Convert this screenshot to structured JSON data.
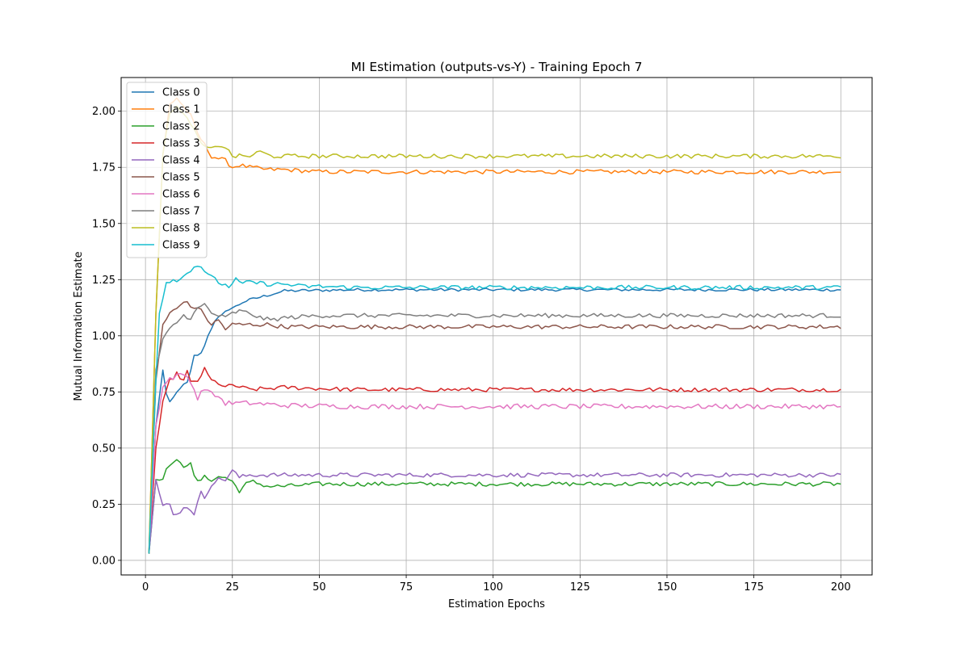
{
  "chart_data": {
    "type": "line",
    "title": "MI Estimation (outputs-vs-Y) - Training Epoch 7",
    "xlabel": "Estimation Epochs",
    "ylabel": "Mutual Information Estimate",
    "xlim": [
      -7,
      209
    ],
    "ylim": [
      -0.065,
      2.15
    ],
    "xticks": [
      0,
      25,
      50,
      75,
      100,
      125,
      150,
      175,
      200
    ],
    "yticks": [
      0.0,
      0.25,
      0.5,
      0.75,
      1.0,
      1.25,
      1.5,
      1.75,
      2.0
    ],
    "ytick_labels": [
      "0.00",
      "0.25",
      "0.50",
      "0.75",
      "1.00",
      "1.25",
      "1.50",
      "1.75",
      "2.00"
    ],
    "grid": true,
    "legend_position": "top-left",
    "x_start": 1,
    "x_end": 200,
    "series": [
      {
        "name": "Class 0",
        "color": "#1f77b4",
        "anchors": [
          [
            1,
            0.03
          ],
          [
            3,
            0.6
          ],
          [
            5,
            0.85
          ],
          [
            6,
            0.74
          ],
          [
            7,
            0.7
          ],
          [
            10,
            0.77
          ],
          [
            12,
            0.79
          ],
          [
            13,
            0.84
          ],
          [
            14,
            0.91
          ],
          [
            16,
            0.92
          ],
          [
            18,
            1.0
          ],
          [
            20,
            1.07
          ],
          [
            22,
            1.09
          ],
          [
            24,
            1.12
          ],
          [
            26,
            1.13
          ],
          [
            28,
            1.15
          ],
          [
            30,
            1.16
          ],
          [
            35,
            1.18
          ],
          [
            40,
            1.2
          ],
          [
            60,
            1.205
          ],
          [
            200,
            1.205
          ]
        ],
        "noise": 0.004
      },
      {
        "name": "Class 1",
        "color": "#ff7f0e",
        "anchors": [
          [
            1,
            0.03
          ],
          [
            3,
            1.1
          ],
          [
            5,
            1.8
          ],
          [
            7,
            2.03
          ],
          [
            9,
            2.06
          ],
          [
            11,
            2.02
          ],
          [
            13,
            1.98
          ],
          [
            15,
            1.9
          ],
          [
            17,
            1.85
          ],
          [
            19,
            1.8
          ],
          [
            21,
            1.79
          ],
          [
            23,
            1.78
          ],
          [
            25,
            1.75
          ],
          [
            27,
            1.76
          ],
          [
            30,
            1.75
          ],
          [
            35,
            1.74
          ],
          [
            40,
            1.74
          ],
          [
            50,
            1.73
          ],
          [
            200,
            1.73
          ]
        ],
        "noise": 0.006
      },
      {
        "name": "Class 2",
        "color": "#2ca02c",
        "anchors": [
          [
            1,
            0.03
          ],
          [
            3,
            0.36
          ],
          [
            5,
            0.37
          ],
          [
            7,
            0.43
          ],
          [
            9,
            0.44
          ],
          [
            11,
            0.42
          ],
          [
            13,
            0.44
          ],
          [
            14,
            0.37
          ],
          [
            15,
            0.35
          ],
          [
            17,
            0.37
          ],
          [
            19,
            0.36
          ],
          [
            21,
            0.37
          ],
          [
            23,
            0.37
          ],
          [
            25,
            0.35
          ],
          [
            27,
            0.31
          ],
          [
            29,
            0.34
          ],
          [
            31,
            0.35
          ],
          [
            33,
            0.34
          ],
          [
            35,
            0.33
          ],
          [
            40,
            0.33
          ],
          [
            50,
            0.34
          ],
          [
            200,
            0.34
          ]
        ],
        "noise": 0.006
      },
      {
        "name": "Class 3",
        "color": "#d62728",
        "anchors": [
          [
            1,
            0.03
          ],
          [
            3,
            0.5
          ],
          [
            5,
            0.7
          ],
          [
            7,
            0.8
          ],
          [
            9,
            0.83
          ],
          [
            11,
            0.8
          ],
          [
            12,
            0.84
          ],
          [
            13,
            0.79
          ],
          [
            15,
            0.8
          ],
          [
            17,
            0.85
          ],
          [
            19,
            0.8
          ],
          [
            21,
            0.79
          ],
          [
            23,
            0.77
          ],
          [
            25,
            0.78
          ],
          [
            30,
            0.76
          ],
          [
            40,
            0.77
          ],
          [
            60,
            0.76
          ],
          [
            200,
            0.76
          ]
        ],
        "noise": 0.006
      },
      {
        "name": "Class 4",
        "color": "#9467bd",
        "anchors": [
          [
            1,
            0.03
          ],
          [
            3,
            0.36
          ],
          [
            5,
            0.24
          ],
          [
            7,
            0.25
          ],
          [
            8,
            0.2
          ],
          [
            10,
            0.22
          ],
          [
            12,
            0.24
          ],
          [
            14,
            0.21
          ],
          [
            16,
            0.3
          ],
          [
            17,
            0.28
          ],
          [
            19,
            0.34
          ],
          [
            21,
            0.36
          ],
          [
            23,
            0.36
          ],
          [
            25,
            0.4
          ],
          [
            27,
            0.37
          ],
          [
            30,
            0.38
          ],
          [
            40,
            0.38
          ],
          [
            200,
            0.38
          ]
        ],
        "noise": 0.006
      },
      {
        "name": "Class 5",
        "color": "#8c564b",
        "anchors": [
          [
            1,
            0.03
          ],
          [
            3,
            0.8
          ],
          [
            5,
            1.05
          ],
          [
            7,
            1.1
          ],
          [
            9,
            1.12
          ],
          [
            11,
            1.15
          ],
          [
            12,
            1.16
          ],
          [
            13,
            1.12
          ],
          [
            15,
            1.13
          ],
          [
            17,
            1.09
          ],
          [
            19,
            1.05
          ],
          [
            21,
            1.07
          ],
          [
            23,
            1.03
          ],
          [
            25,
            1.05
          ],
          [
            30,
            1.05
          ],
          [
            35,
            1.05
          ],
          [
            40,
            1.04
          ],
          [
            50,
            1.04
          ],
          [
            200,
            1.04
          ]
        ],
        "noise": 0.006
      },
      {
        "name": "Class 6",
        "color": "#e377c2",
        "anchors": [
          [
            1,
            0.03
          ],
          [
            3,
            0.6
          ],
          [
            5,
            0.77
          ],
          [
            7,
            0.81
          ],
          [
            9,
            0.82
          ],
          [
            11,
            0.83
          ],
          [
            13,
            0.8
          ],
          [
            15,
            0.72
          ],
          [
            17,
            0.77
          ],
          [
            19,
            0.74
          ],
          [
            21,
            0.73
          ],
          [
            23,
            0.7
          ],
          [
            25,
            0.7
          ],
          [
            30,
            0.7
          ],
          [
            40,
            0.69
          ],
          [
            60,
            0.685
          ],
          [
            200,
            0.685
          ]
        ],
        "noise": 0.007
      },
      {
        "name": "Class 7",
        "color": "#7f7f7f",
        "anchors": [
          [
            1,
            0.03
          ],
          [
            3,
            0.85
          ],
          [
            5,
            0.98
          ],
          [
            7,
            1.03
          ],
          [
            9,
            1.06
          ],
          [
            11,
            1.09
          ],
          [
            13,
            1.08
          ],
          [
            15,
            1.12
          ],
          [
            17,
            1.14
          ],
          [
            19,
            1.1
          ],
          [
            21,
            1.09
          ],
          [
            23,
            1.08
          ],
          [
            25,
            1.1
          ],
          [
            27,
            1.11
          ],
          [
            30,
            1.1
          ],
          [
            33,
            1.08
          ],
          [
            36,
            1.07
          ],
          [
            40,
            1.08
          ],
          [
            50,
            1.09
          ],
          [
            200,
            1.09
          ]
        ],
        "noise": 0.006
      },
      {
        "name": "Class 8",
        "color": "#bcbd22",
        "anchors": [
          [
            1,
            0.03
          ],
          [
            3,
            1.1
          ],
          [
            5,
            1.8
          ],
          [
            7,
            2.0
          ],
          [
            9,
            2.02
          ],
          [
            11,
            1.98
          ],
          [
            13,
            1.95
          ],
          [
            15,
            1.88
          ],
          [
            17,
            1.84
          ],
          [
            19,
            1.83
          ],
          [
            21,
            1.85
          ],
          [
            23,
            1.84
          ],
          [
            25,
            1.8
          ],
          [
            27,
            1.8
          ],
          [
            30,
            1.8
          ],
          [
            33,
            1.82
          ],
          [
            36,
            1.8
          ],
          [
            40,
            1.8
          ],
          [
            200,
            1.8
          ]
        ],
        "noise": 0.006
      },
      {
        "name": "Class 9",
        "color": "#17becf",
        "anchors": [
          [
            1,
            0.03
          ],
          [
            3,
            0.8
          ],
          [
            4,
            1.1
          ],
          [
            6,
            1.24
          ],
          [
            8,
            1.25
          ],
          [
            10,
            1.25
          ],
          [
            12,
            1.28
          ],
          [
            14,
            1.31
          ],
          [
            16,
            1.31
          ],
          [
            18,
            1.27
          ],
          [
            20,
            1.25
          ],
          [
            22,
            1.23
          ],
          [
            24,
            1.22
          ],
          [
            26,
            1.25
          ],
          [
            28,
            1.23
          ],
          [
            30,
            1.24
          ],
          [
            35,
            1.23
          ],
          [
            40,
            1.23
          ],
          [
            45,
            1.22
          ],
          [
            50,
            1.22
          ],
          [
            60,
            1.215
          ],
          [
            200,
            1.215
          ]
        ],
        "noise": 0.006
      }
    ]
  }
}
